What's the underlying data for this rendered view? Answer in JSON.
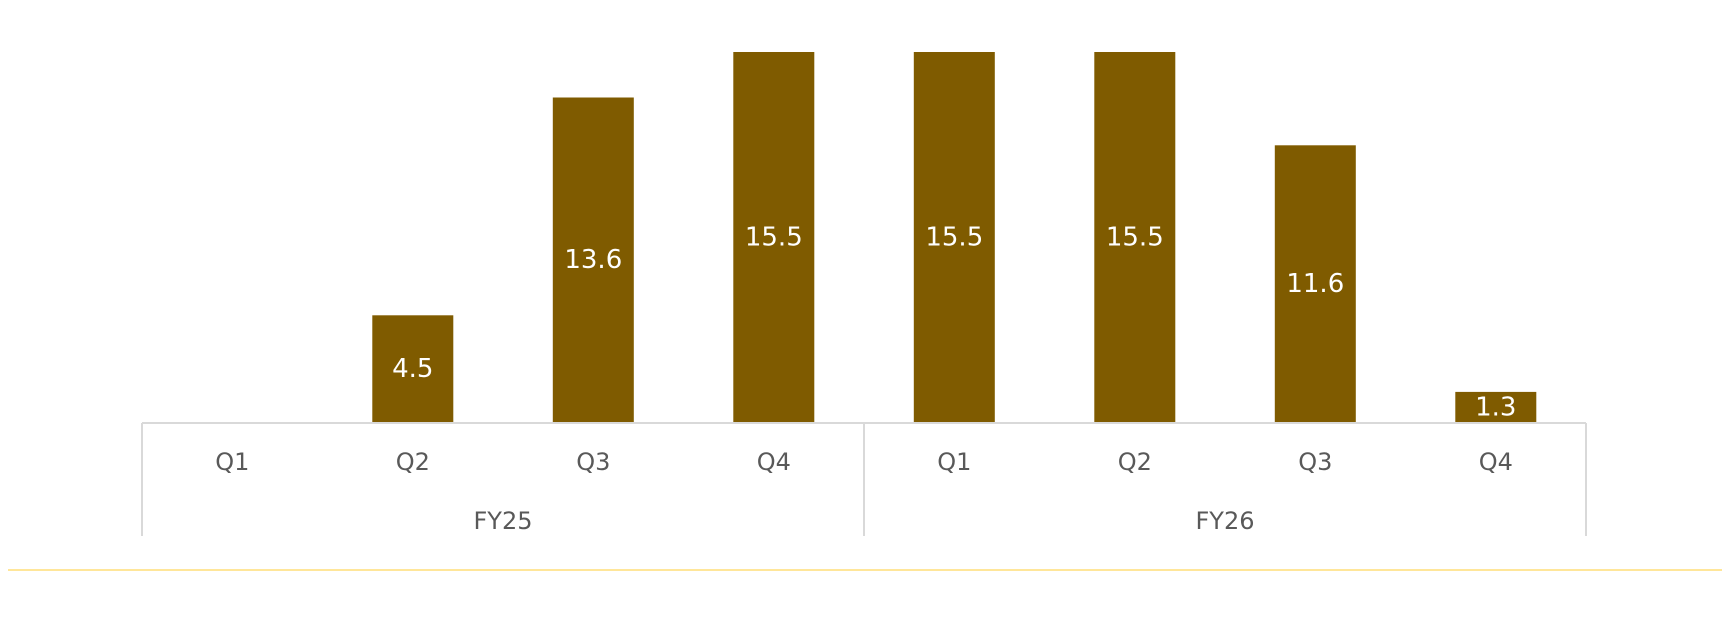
{
  "chart_data": {
    "type": "bar",
    "title": "",
    "xlabel": "",
    "ylabel": "",
    "groups": [
      {
        "label": "FY25",
        "categories": [
          "Q1",
          "Q2",
          "Q3",
          "Q4"
        ]
      },
      {
        "label": "FY26",
        "categories": [
          "Q1",
          "Q2",
          "Q3",
          "Q4"
        ]
      }
    ],
    "categories": [
      "Q1",
      "Q2",
      "Q3",
      "Q4",
      "Q1",
      "Q2",
      "Q3",
      "Q4"
    ],
    "values": [
      0,
      4.5,
      13.6,
      15.5,
      15.5,
      15.5,
      11.6,
      1.3
    ],
    "value_labels": [
      "",
      "4.5",
      "13.6",
      "15.5",
      "15.5",
      "15.5",
      "11.6",
      "1.3"
    ],
    "ylim": [
      0,
      15.5
    ],
    "grid": false,
    "legend": "none",
    "colors": {
      "bar": "#7F5B00",
      "axis": "#D9D9D9",
      "label_text": "#595959",
      "data_label_text": "#FFFFFF",
      "divider": "#FFE699"
    }
  }
}
